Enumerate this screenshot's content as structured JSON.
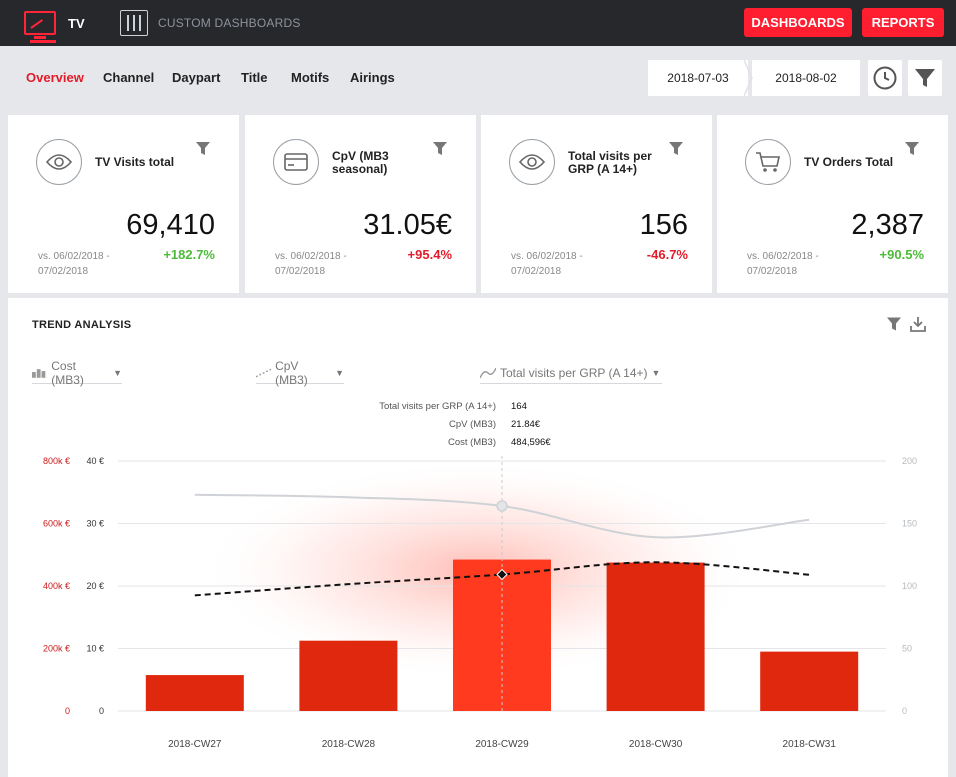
{
  "topbar": {
    "tv_label": "TV",
    "custom_dashboards_label": "CUSTOM DASHBOARDS",
    "dashboards_button": "DASHBOARDS",
    "reports_button": "REPORTS"
  },
  "subnav": {
    "tabs": [
      "Overview",
      "Channel",
      "Daypart",
      "Title",
      "Motifs",
      "Airings"
    ],
    "active_tab": "Overview",
    "date_from": "2018-07-03",
    "date_to": "2018-08-02"
  },
  "kpis": [
    {
      "title": "TV Visits total",
      "value": "69,410",
      "vs": "vs. 06/02/2018 - 07/02/2018",
      "change": "+182.7%",
      "trend": "positive",
      "icon": "eye-icon"
    },
    {
      "title": "CpV (MB3 seasonal)",
      "value": "31.05€",
      "vs": "vs. 06/02/2018 - 07/02/2018",
      "change": "+95.4%",
      "trend": "negative",
      "icon": "credit-card-icon"
    },
    {
      "title": "Total visits per GRP (A 14+)",
      "value": "156",
      "vs": "vs. 06/02/2018 - 07/02/2018",
      "change": "-46.7%",
      "trend": "negative",
      "icon": "eye-icon"
    },
    {
      "title": "TV Orders Total",
      "value": "2,387",
      "vs": "vs. 06/02/2018 - 07/02/2018",
      "change": "+90.5%",
      "trend": "positive",
      "icon": "cart-icon"
    }
  ],
  "trend": {
    "title": "TREND ANALYSIS",
    "selectors": [
      "Cost (MB3)",
      "CpV (MB3)",
      "Total visits per GRP (A 14+)"
    ],
    "tooltip": [
      {
        "label": "Total visits per GRP (A 14+)",
        "value": "164"
      },
      {
        "label": "CpV (MB3)",
        "value": "21.84€"
      },
      {
        "label": "Cost (MB3)",
        "value": "484,596€"
      }
    ]
  },
  "colors": {
    "accent": "#ff1e30",
    "bar": "#e0280f",
    "bar_highlight": "#ff3a1e",
    "positive": "#4dbb3a",
    "negative": "#e21c2c",
    "topbar": "#26282c"
  },
  "chart_data": {
    "type": "bar",
    "categories": [
      "2018-CW27",
      "2018-CW28",
      "2018-CW29",
      "2018-CW30",
      "2018-CW31"
    ],
    "series": [
      {
        "name": "Cost (MB3)",
        "type": "bar",
        "axis": "left-outer",
        "values": [
          115000,
          225000,
          484596,
          475000,
          190000
        ]
      },
      {
        "name": "CpV (MB3)",
        "type": "dashed-line",
        "axis": "left-inner",
        "values": [
          18.5,
          20.3,
          21.84,
          23.8,
          21.8
        ]
      },
      {
        "name": "Total visits per GRP (A 14+)",
        "type": "line",
        "axis": "right",
        "values": [
          173,
          171,
          164,
          139,
          153
        ]
      }
    ],
    "axes": {
      "left_outer": {
        "ticks": [
          "0",
          "200k €",
          "400k €",
          "600k €",
          "800k €"
        ],
        "range": [
          0,
          800000
        ]
      },
      "left_inner": {
        "ticks": [
          "0",
          "10 €",
          "20 €",
          "30 €",
          "40 €"
        ],
        "range": [
          0,
          40
        ]
      },
      "right": {
        "ticks": [
          "0",
          "50",
          "100",
          "150",
          "200"
        ],
        "range": [
          0,
          200
        ]
      }
    },
    "highlighted_category": "2018-CW29",
    "grid": true
  }
}
